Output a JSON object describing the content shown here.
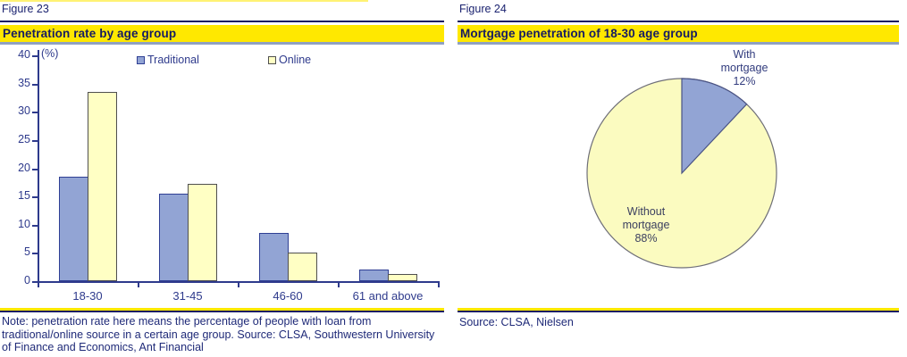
{
  "colors": {
    "navy_text": "#2e3a8c",
    "navy_dark": "#1b2370",
    "rule_navy": "#131c63",
    "band_yellow": "#ffe800",
    "band_gray_blue": "#8fa0c2",
    "bar_blue_fill": "#92a4d4",
    "bar_blue_border": "#2f3f94",
    "bar_yellow_fill": "#ffffc4",
    "bar_yellow_border": "#4f4f4f",
    "pie_yellow_fill": "#fbfbc0",
    "pie_blue_fill": "#92a4d4",
    "pie_outline": "#6f6f78"
  },
  "left_panel": {
    "figure_label": "Figure 23",
    "title": "Penetration rate by age group",
    "note": "Note: penetration rate here means the percentage of people with loan from traditional/online source in a certain age group. Source: CLSA, Southwestern University of Finance and Economics, Ant Financial"
  },
  "right_panel": {
    "figure_label": "Figure 24",
    "title": "Mortgage penetration of 18-30 age group",
    "source": "Source: CLSA, Nielsen"
  },
  "chart_data": [
    {
      "type": "bar",
      "title": "Penetration rate by age group",
      "unit_label": "(%)",
      "categories": [
        "18-30",
        "31-45",
        "46-60",
        "61 and above"
      ],
      "series": [
        {
          "name": "Traditional",
          "values": [
            18.5,
            15.5,
            8.5,
            2.0
          ]
        },
        {
          "name": "Online",
          "values": [
            33.5,
            17.3,
            5.0,
            1.2
          ]
        }
      ],
      "ylim": [
        0,
        40
      ],
      "ytick_step": 5,
      "grid": false,
      "legend_position": "top"
    },
    {
      "type": "pie",
      "title": "Mortgage penetration of 18-30 age group",
      "slices": [
        {
          "label": "With mortgage",
          "value": 12
        },
        {
          "label": "Without mortgage",
          "value": 88
        }
      ],
      "start_angle": "12-o-clock",
      "direction": "clockwise"
    }
  ]
}
